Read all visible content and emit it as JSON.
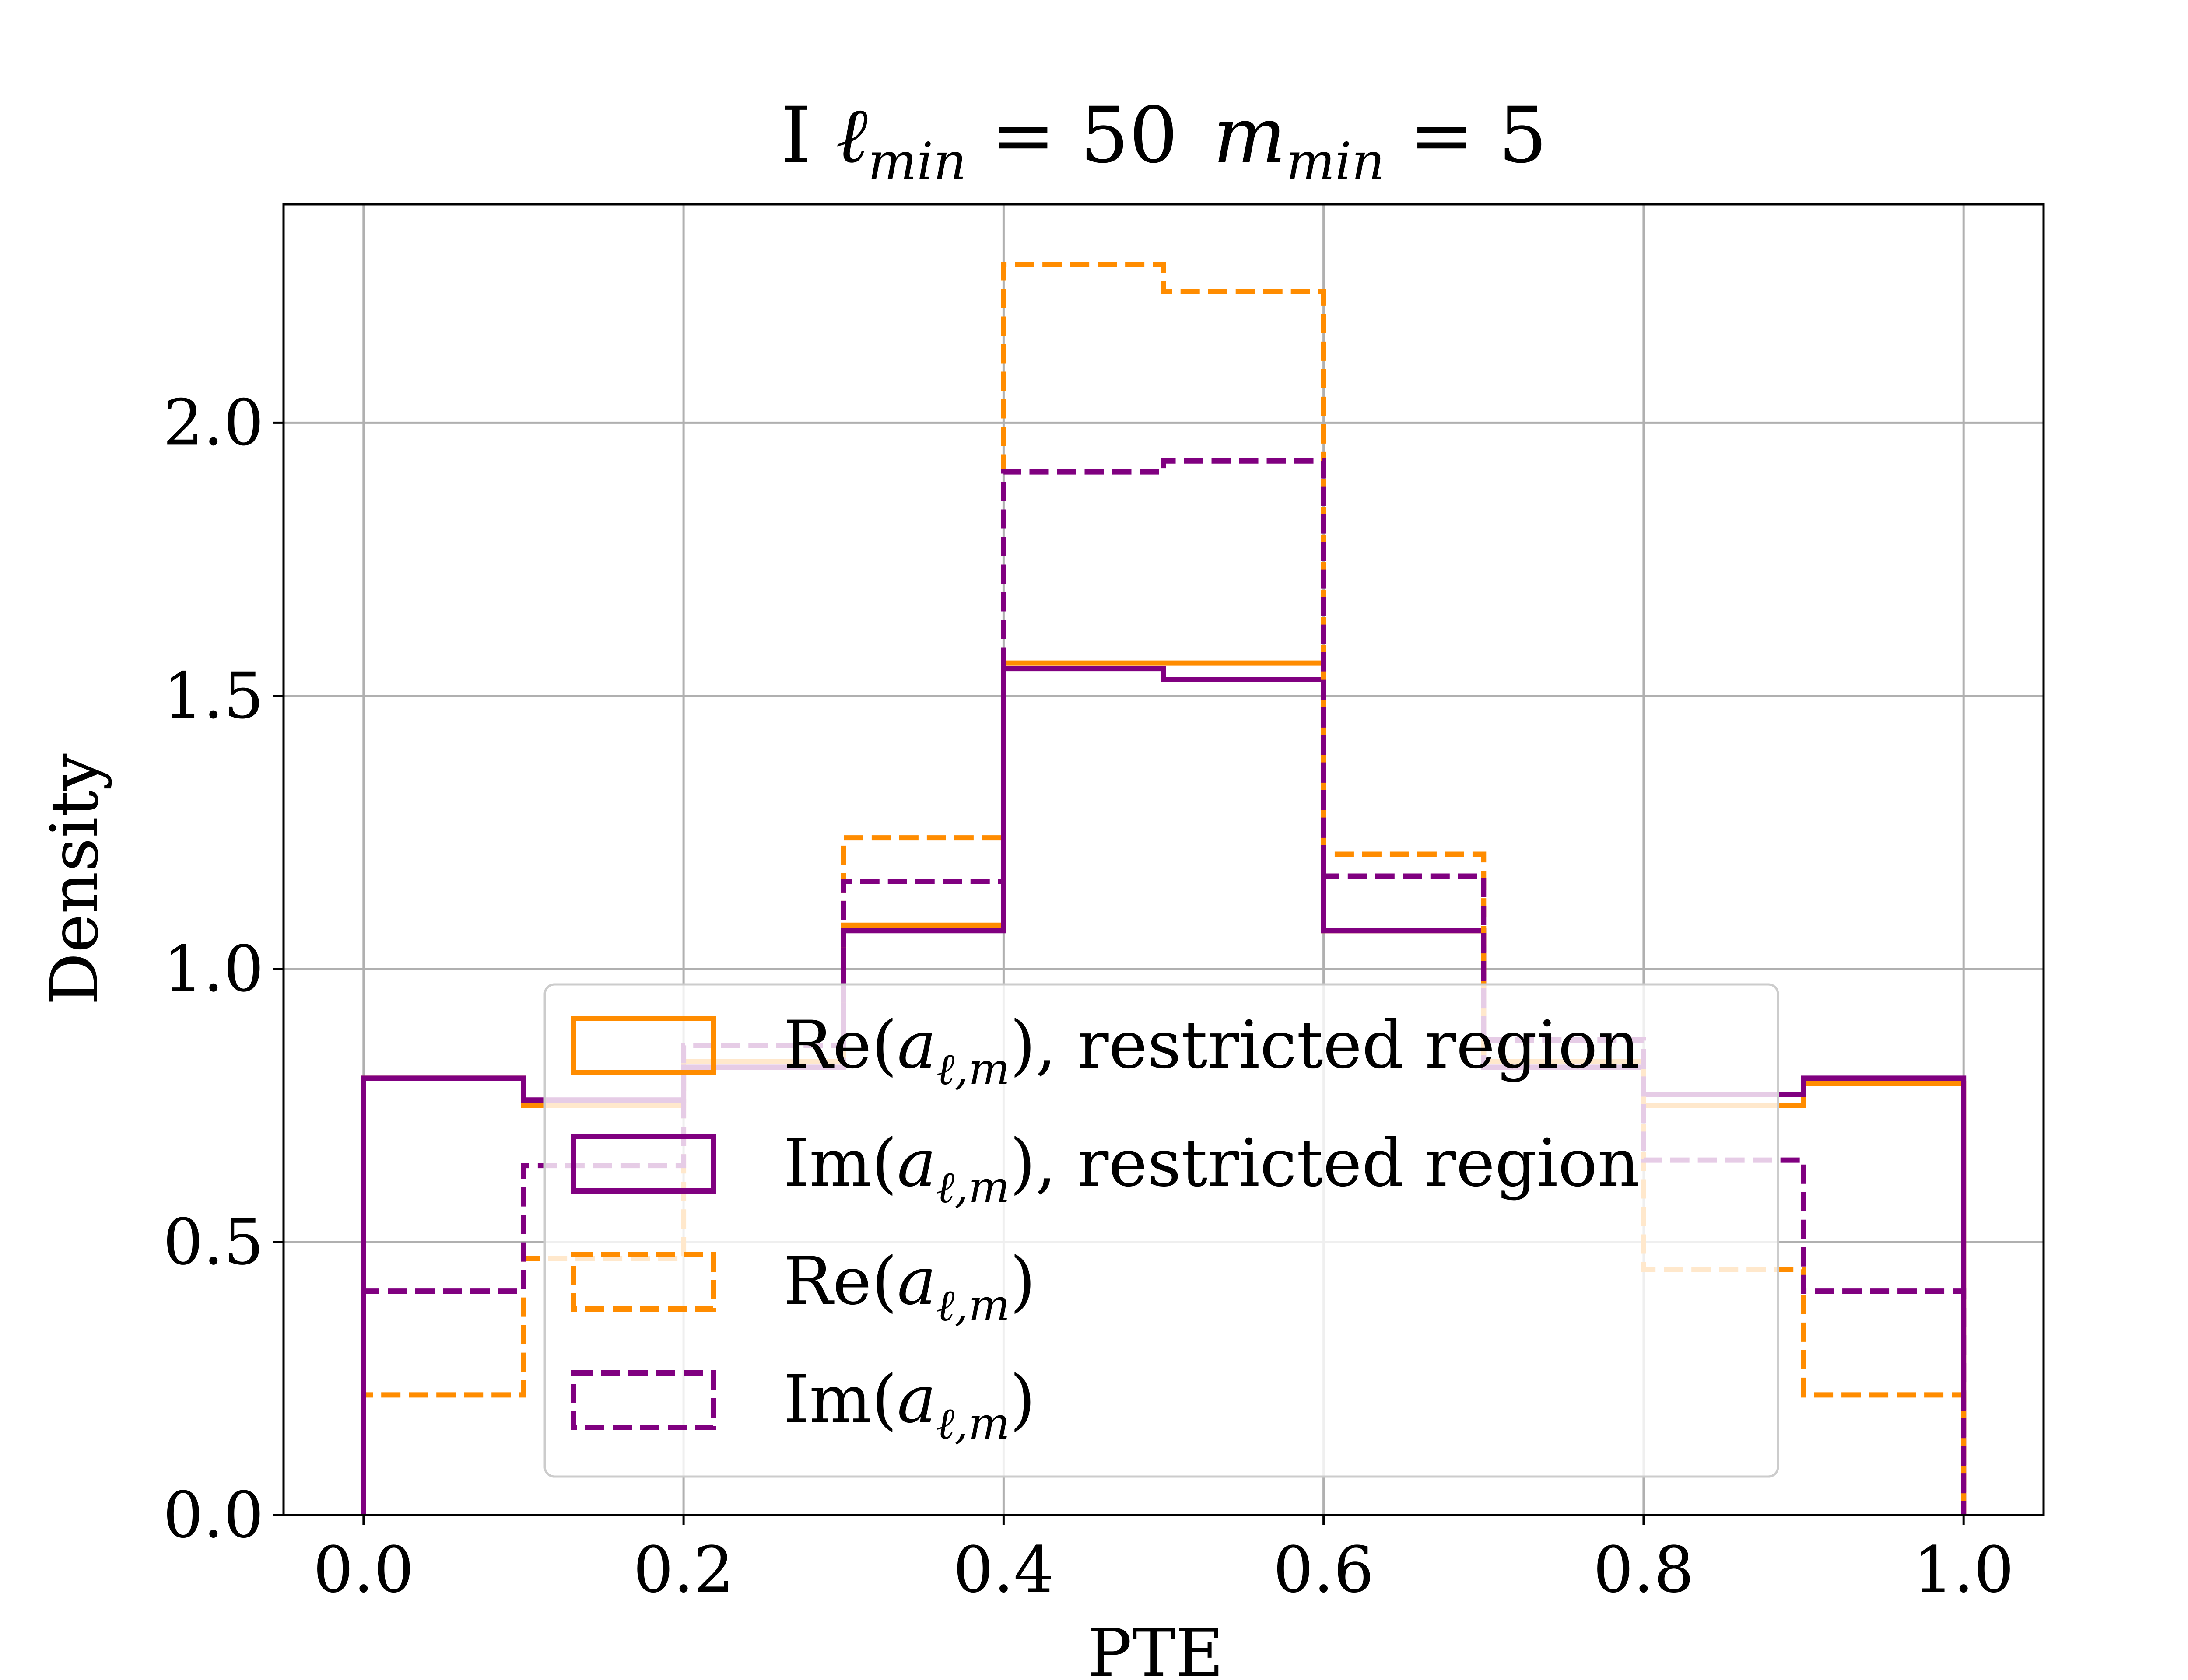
{
  "chart_data": {
    "type": "histogram-step",
    "title_parts": {
      "prefix": "I ",
      "lsym": "ℓ",
      "lsub": "min",
      "leq": " = 50",
      "msym": "m",
      "msub": "min",
      "meq": " = 5"
    },
    "xlabel": "PTE",
    "ylabel": "Density",
    "xlim": [
      -0.05,
      1.05
    ],
    "ylim": [
      0.0,
      2.4
    ],
    "grid": true,
    "legend_position": "lower-center",
    "bin_edges": [
      0.0,
      0.1,
      0.2,
      0.3,
      0.4,
      0.5,
      0.6,
      0.7,
      0.8,
      0.9,
      1.0
    ],
    "x_ticks": [
      "0.0",
      "0.2",
      "0.4",
      "0.6",
      "0.8",
      "1.0"
    ],
    "x_tick_values": [
      0.0,
      0.2,
      0.4,
      0.6,
      0.8,
      1.0
    ],
    "y_ticks": [
      "0.0",
      "0.5",
      "1.0",
      "1.5",
      "2.0"
    ],
    "y_tick_values": [
      0.0,
      0.5,
      1.0,
      1.5,
      2.0
    ],
    "series": [
      {
        "name": "Re(a_{ℓ,m}), restricted region",
        "label_prefix": "Re(",
        "label_suffix": "), restricted region",
        "color": "#ff8c00",
        "style": "solid",
        "values": [
          0.8,
          0.75,
          0.83,
          1.08,
          1.56,
          1.56,
          1.07,
          0.83,
          0.75,
          0.79
        ]
      },
      {
        "name": "Im(a_{ℓ,m}), restricted region",
        "label_prefix": "Im(",
        "label_suffix": "), restricted region",
        "color": "#800080",
        "style": "solid",
        "values": [
          0.8,
          0.76,
          0.82,
          1.07,
          1.55,
          1.53,
          1.07,
          0.82,
          0.77,
          0.8
        ]
      },
      {
        "name": "Re(a_{ℓ,m})",
        "label_prefix": "Re(",
        "label_suffix": ")",
        "color": "#ff8c00",
        "style": "dashed",
        "values": [
          0.22,
          0.47,
          0.83,
          1.24,
          2.29,
          2.24,
          1.21,
          0.83,
          0.45,
          0.22
        ]
      },
      {
        "name": "Im(a_{ℓ,m})",
        "label_prefix": "Im(",
        "label_suffix": ")",
        "color": "#800080",
        "style": "dashed",
        "values": [
          0.41,
          0.64,
          0.86,
          1.16,
          1.91,
          1.93,
          1.17,
          0.87,
          0.65,
          0.41
        ]
      }
    ]
  }
}
